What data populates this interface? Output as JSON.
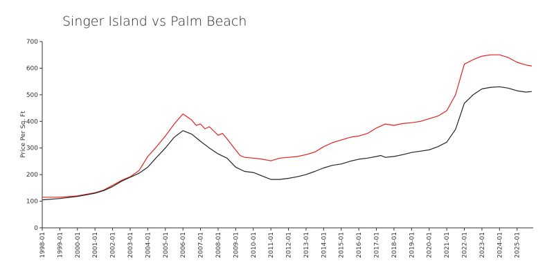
{
  "chart_data": {
    "type": "line",
    "title": "Singer Island vs Palm Beach",
    "xlabel": "",
    "ylabel": "Price Per Sq. Ft",
    "ylim": [
      0,
      700
    ],
    "xlim": [
      "1998-01",
      "2025-12"
    ],
    "y_ticks": [
      0,
      100,
      200,
      300,
      400,
      500,
      600,
      700
    ],
    "x_ticks": [
      "1998-01",
      "1999-01",
      "2000-01",
      "2001-01",
      "2002-01",
      "2003-01",
      "2004-01",
      "2005-01",
      "2006-01",
      "2007-01",
      "2008-01",
      "2009-01",
      "2010-01",
      "2011-01",
      "2012-01",
      "2013-01",
      "2014-01",
      "2015-01",
      "2016-01",
      "2017-01",
      "2018-01",
      "2019-01",
      "2020-01",
      "2021-01",
      "2022-01",
      "2023-01",
      "2024-01",
      "2025-01"
    ],
    "grid": false,
    "legend": "none",
    "series": [
      {
        "color": "#e8201e",
        "points": [
          [
            "1998-01",
            115
          ],
          [
            "1999-01",
            115
          ],
          [
            "2000-01",
            120
          ],
          [
            "2001-01",
            132
          ],
          [
            "2001-07",
            142
          ],
          [
            "2002-01",
            160
          ],
          [
            "2002-07",
            178
          ],
          [
            "2003-01",
            192
          ],
          [
            "2003-07",
            215
          ],
          [
            "2004-01",
            268
          ],
          [
            "2004-07",
            305
          ],
          [
            "2005-01",
            345
          ],
          [
            "2005-07",
            390
          ],
          [
            "2006-01",
            428
          ],
          [
            "2006-07",
            405
          ],
          [
            "2006-10",
            385
          ],
          [
            "2007-01",
            390
          ],
          [
            "2007-04",
            372
          ],
          [
            "2007-07",
            380
          ],
          [
            "2008-01",
            348
          ],
          [
            "2008-04",
            355
          ],
          [
            "2008-07",
            335
          ],
          [
            "2009-01",
            292
          ],
          [
            "2009-04",
            272
          ],
          [
            "2009-07",
            265
          ],
          [
            "2010-01",
            262
          ],
          [
            "2010-07",
            258
          ],
          [
            "2011-01",
            252
          ],
          [
            "2011-07",
            262
          ],
          [
            "2012-01",
            265
          ],
          [
            "2012-07",
            268
          ],
          [
            "2013-01",
            275
          ],
          [
            "2013-07",
            285
          ],
          [
            "2014-01",
            305
          ],
          [
            "2014-07",
            320
          ],
          [
            "2015-01",
            330
          ],
          [
            "2015-07",
            340
          ],
          [
            "2016-01",
            345
          ],
          [
            "2016-07",
            355
          ],
          [
            "2017-01",
            375
          ],
          [
            "2017-07",
            390
          ],
          [
            "2018-01",
            385
          ],
          [
            "2018-07",
            392
          ],
          [
            "2019-01",
            395
          ],
          [
            "2019-07",
            400
          ],
          [
            "2020-01",
            410
          ],
          [
            "2020-07",
            420
          ],
          [
            "2021-01",
            440
          ],
          [
            "2021-07",
            500
          ],
          [
            "2022-01",
            615
          ],
          [
            "2022-07",
            632
          ],
          [
            "2023-01",
            645
          ],
          [
            "2023-07",
            650
          ],
          [
            "2024-01",
            650
          ],
          [
            "2024-07",
            640
          ],
          [
            "2025-01",
            622
          ],
          [
            "2025-07",
            612
          ],
          [
            "2025-11",
            608
          ]
        ]
      },
      {
        "color": "#222222",
        "points": [
          [
            "1998-01",
            105
          ],
          [
            "1999-01",
            110
          ],
          [
            "2000-01",
            118
          ],
          [
            "2001-01",
            130
          ],
          [
            "2001-07",
            140
          ],
          [
            "2002-01",
            155
          ],
          [
            "2002-07",
            175
          ],
          [
            "2003-01",
            190
          ],
          [
            "2003-07",
            205
          ],
          [
            "2004-01",
            228
          ],
          [
            "2004-07",
            265
          ],
          [
            "2005-01",
            300
          ],
          [
            "2005-07",
            340
          ],
          [
            "2006-01",
            365
          ],
          [
            "2006-07",
            352
          ],
          [
            "2007-01",
            325
          ],
          [
            "2007-07",
            300
          ],
          [
            "2008-01",
            278
          ],
          [
            "2008-07",
            262
          ],
          [
            "2009-01",
            228
          ],
          [
            "2009-07",
            212
          ],
          [
            "2010-01",
            208
          ],
          [
            "2010-07",
            195
          ],
          [
            "2011-01",
            182
          ],
          [
            "2011-07",
            182
          ],
          [
            "2012-01",
            186
          ],
          [
            "2012-07",
            192
          ],
          [
            "2013-01",
            200
          ],
          [
            "2013-07",
            212
          ],
          [
            "2014-01",
            225
          ],
          [
            "2014-07",
            235
          ],
          [
            "2015-01",
            240
          ],
          [
            "2015-07",
            250
          ],
          [
            "2016-01",
            258
          ],
          [
            "2016-07",
            262
          ],
          [
            "2017-01",
            268
          ],
          [
            "2017-04",
            272
          ],
          [
            "2017-07",
            265
          ],
          [
            "2018-01",
            268
          ],
          [
            "2018-07",
            275
          ],
          [
            "2019-01",
            283
          ],
          [
            "2019-07",
            288
          ],
          [
            "2020-01",
            293
          ],
          [
            "2020-07",
            305
          ],
          [
            "2021-01",
            322
          ],
          [
            "2021-07",
            370
          ],
          [
            "2022-01",
            468
          ],
          [
            "2022-07",
            500
          ],
          [
            "2023-01",
            522
          ],
          [
            "2023-07",
            528
          ],
          [
            "2024-01",
            530
          ],
          [
            "2024-07",
            525
          ],
          [
            "2025-01",
            515
          ],
          [
            "2025-07",
            510
          ],
          [
            "2025-11",
            512
          ]
        ]
      }
    ]
  }
}
